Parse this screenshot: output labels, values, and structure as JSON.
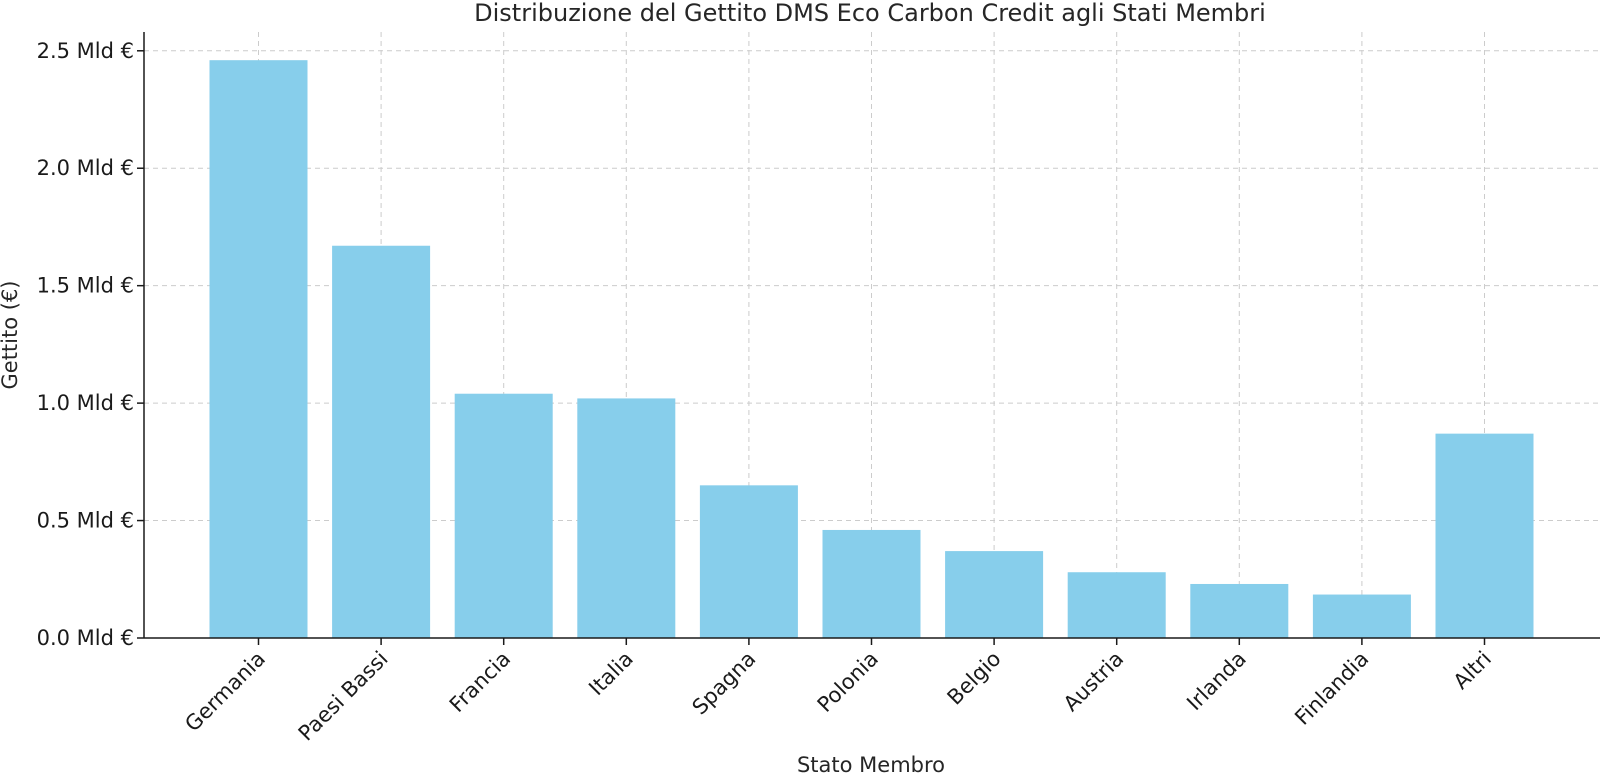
{
  "chart_data": {
    "type": "bar",
    "title": "Distribuzione del Gettito DMS Eco Carbon Credit agli Stati Membri",
    "xlabel": "Stato Membro",
    "ylabel": "Gettito (€)",
    "categories": [
      "Germania",
      "Paesi Bassi",
      "Francia",
      "Italia",
      "Spagna",
      "Polonia",
      "Belgio",
      "Austria",
      "Irlanda",
      "Finlandia",
      "Altri"
    ],
    "values": [
      2.46,
      1.67,
      1.04,
      1.02,
      0.65,
      0.46,
      0.37,
      0.28,
      0.23,
      0.185,
      0.87
    ],
    "value_unit": "Mld €",
    "ylim": [
      0,
      2.58
    ],
    "yticks": [
      0.0,
      0.5,
      1.0,
      1.5,
      2.0,
      2.5
    ],
    "ytick_labels": [
      "0.0 Mld €",
      "0.5 Mld €",
      "1.0 Mld €",
      "1.5 Mld €",
      "2.0 Mld €",
      "2.5 Mld €"
    ],
    "grid": true,
    "legend": "none",
    "bar_color": "#87ceeb"
  }
}
